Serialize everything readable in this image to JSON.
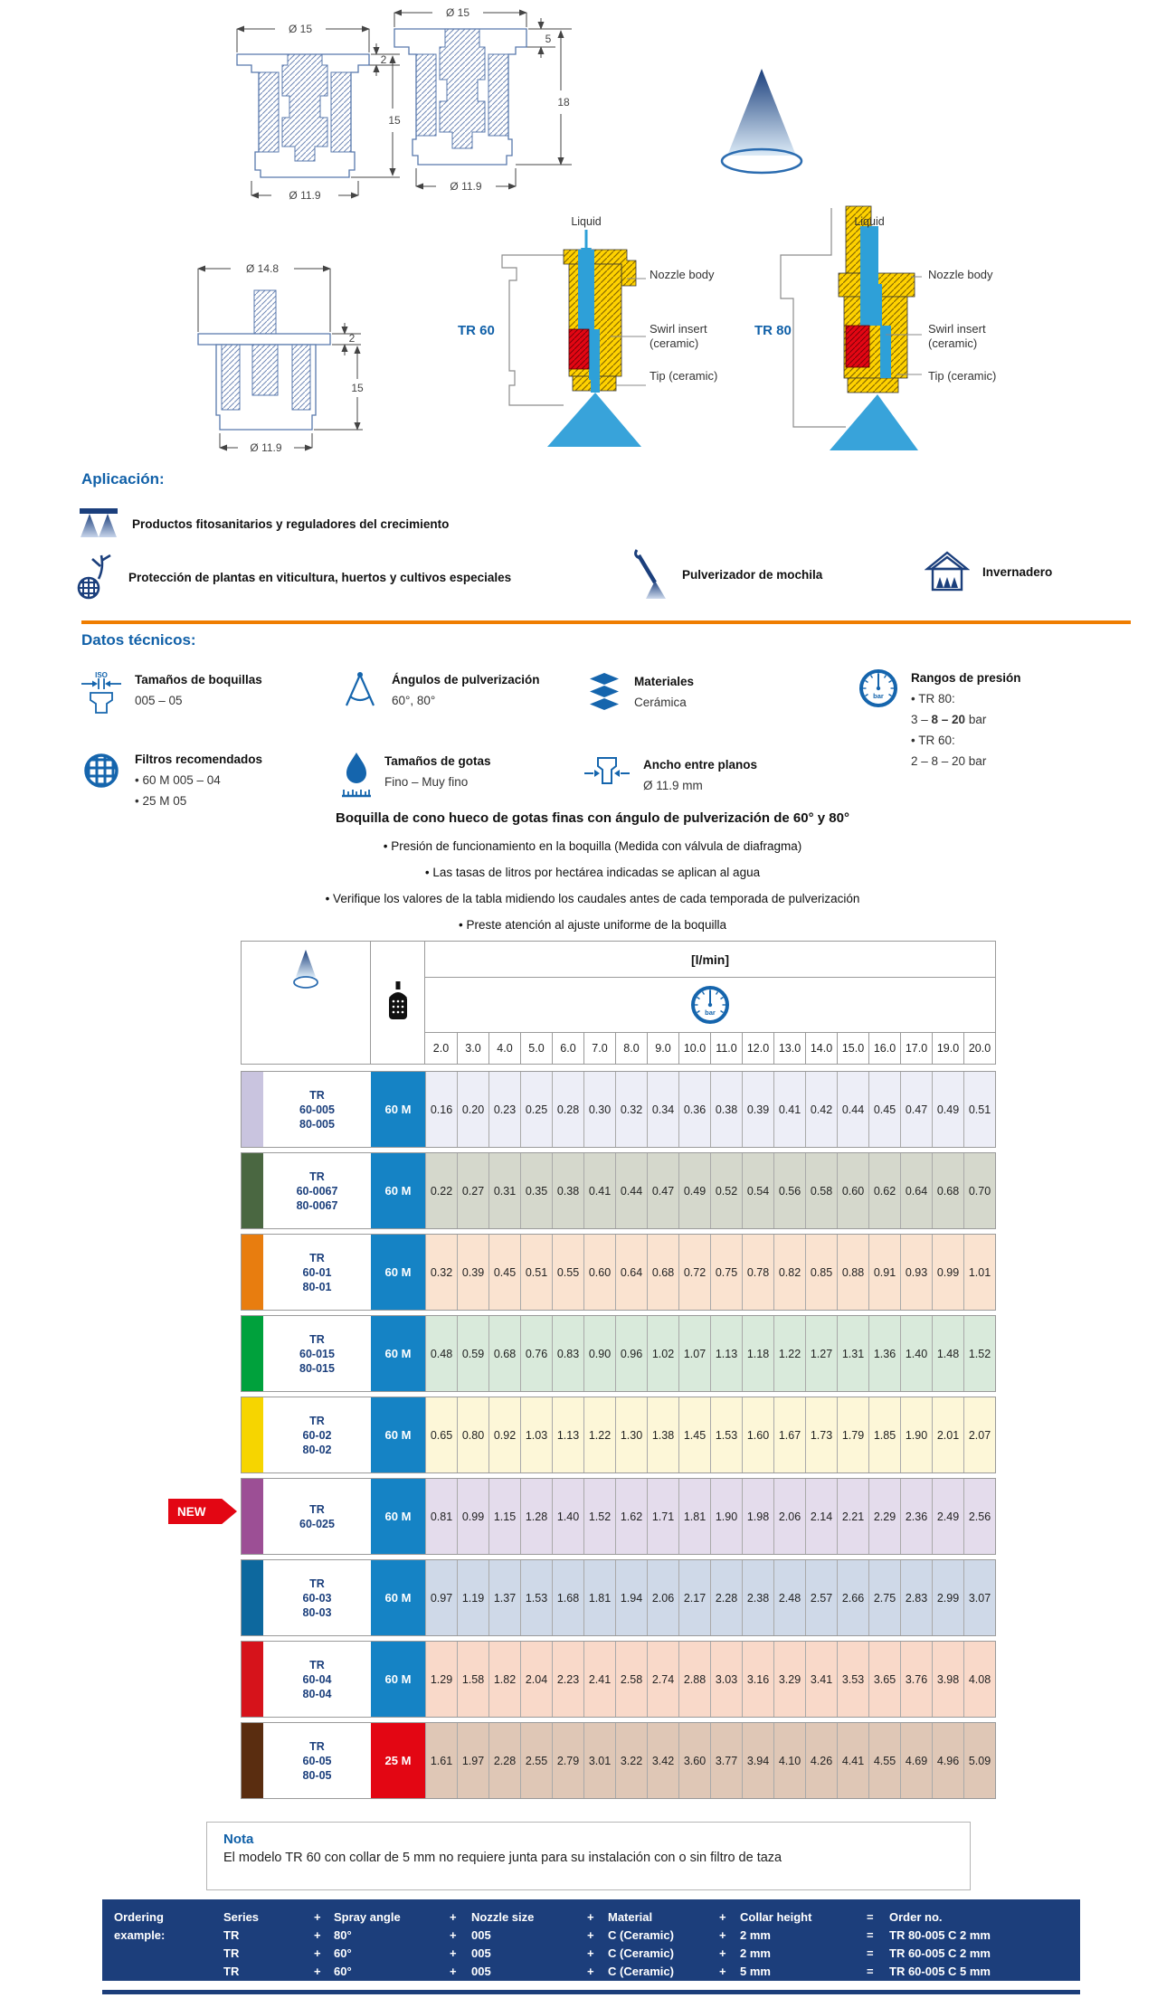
{
  "misc": {
    "bar": "bar",
    "iso": "ISO"
  },
  "drawings": {
    "top_left": {
      "dia_top": "Ø 15",
      "collar": "2",
      "height": "15",
      "dia_bottom": "Ø 11.9"
    },
    "top_mid": {
      "dia_top": "Ø 15",
      "collar": "5",
      "height": "18",
      "dia_bottom": "Ø 11.9"
    },
    "collar_detail": {
      "dia_top": "Ø 14.8",
      "collar": "2",
      "height": "15",
      "dia_bottom": "Ø 11.9"
    },
    "sections": [
      {
        "label": "TR 60",
        "liquid": "Liquid",
        "parts": [
          "Nozzle body",
          "Swirl insert",
          "(ceramic)",
          "Tip (ceramic)"
        ]
      },
      {
        "label": "TR 80",
        "liquid": "Liquid",
        "parts": [
          "Nozzle body",
          "Swirl insert",
          "(ceramic)",
          "Tip (ceramic)"
        ]
      }
    ]
  },
  "aplicacion": {
    "heading": "Aplicación:",
    "items": [
      {
        "icon": "sprinkler-icon",
        "label": "Productos fitosanitarios y reguladores del crecimiento"
      },
      {
        "icon": "viticulture-icon",
        "label": "Protección de plantas en viticultura, huertos y cultivos especiales"
      },
      {
        "icon": "knapsack-sprayer-icon",
        "label": "Pulverizador de mochila"
      },
      {
        "icon": "greenhouse-icon",
        "label": "Invernadero"
      }
    ]
  },
  "datos": {
    "heading": "Datos técnicos:",
    "items": [
      {
        "title": "Tamaños de boquillas",
        "lines": [
          "005 – 05"
        ]
      },
      {
        "title": "Ángulos de pulverización",
        "lines": [
          "60°, 80°"
        ]
      },
      {
        "title": "Materiales",
        "lines": [
          "Cerámica"
        ]
      },
      {
        "title": "Rangos de presión"
      },
      {
        "title": "Filtros recomendados",
        "lines": [
          "• 60 M 005 – 04",
          "• 25 M 05"
        ]
      },
      {
        "title": "Tamaños de gotas",
        "lines": [
          "Fino – Muy fino"
        ]
      },
      {
        "title": "Ancho entre planos",
        "lines": [
          "Ø 11.9 mm"
        ]
      }
    ],
    "presion": {
      "line1": "• TR 80:",
      "line2_pre": "3 – ",
      "line2_bold": "8 – 20",
      "line2_post": " bar",
      "line3": "• TR 60:",
      "line4": "2 – 8 – 20 bar"
    }
  },
  "intro": {
    "title": "Boquilla de cono hueco de gotas finas con ángulo de pulverización de 60° y 80°",
    "bullets": [
      "• Presión de funcionamiento en la boquilla (Medida con válvula de diafragma)",
      "• Las tasas de litros por hectárea indicadas se aplican al agua",
      "• Verifique los valores de la tabla midiendo los caudales antes de cada temporada de pulverización",
      "• Preste atención al ajuste uniforme de la boquilla"
    ]
  },
  "table": {
    "flow_unit": "[l/min]",
    "new_badge": "NEW",
    "pressures_bar": [
      "2.0",
      "3.0",
      "4.0",
      "5.0",
      "6.0",
      "7.0",
      "8.0",
      "9.0",
      "10.0",
      "11.0",
      "12.0",
      "13.0",
      "14.0",
      "15.0",
      "16.0",
      "17.0",
      "19.0",
      "20.0"
    ],
    "rows": [
      {
        "model": [
          "TR",
          "60-005",
          "80-005"
        ],
        "filter": "60 M",
        "filter_bg": "#1583c5",
        "strip": "#c9c4df",
        "bg": "#edeef7",
        "is_new": false,
        "values": [
          "0.16",
          "0.20",
          "0.23",
          "0.25",
          "0.28",
          "0.30",
          "0.32",
          "0.34",
          "0.36",
          "0.38",
          "0.39",
          "0.41",
          "0.42",
          "0.44",
          "0.45",
          "0.47",
          "0.49",
          "0.51"
        ]
      },
      {
        "model": [
          "TR",
          "60-0067",
          "80-0067"
        ],
        "filter": "60 M",
        "filter_bg": "#1583c5",
        "strip": "#4a6741",
        "bg": "#d5d8cc",
        "is_new": false,
        "values": [
          "0.22",
          "0.27",
          "0.31",
          "0.35",
          "0.38",
          "0.41",
          "0.44",
          "0.47",
          "0.49",
          "0.52",
          "0.54",
          "0.56",
          "0.58",
          "0.60",
          "0.62",
          "0.64",
          "0.68",
          "0.70"
        ]
      },
      {
        "model": [
          "TR",
          "60-01",
          "80-01"
        ],
        "filter": "60 M",
        "filter_bg": "#1583c5",
        "strip": "#e87d0f",
        "bg": "#fae3d0",
        "is_new": false,
        "values": [
          "0.32",
          "0.39",
          "0.45",
          "0.51",
          "0.55",
          "0.60",
          "0.64",
          "0.68",
          "0.72",
          "0.75",
          "0.78",
          "0.82",
          "0.85",
          "0.88",
          "0.91",
          "0.93",
          "0.99",
          "1.01"
        ]
      },
      {
        "model": [
          "TR",
          "60-015",
          "80-015"
        ],
        "filter": "60 M",
        "filter_bg": "#1583c5",
        "strip": "#00a13c",
        "bg": "#d9eadb",
        "is_new": false,
        "values": [
          "0.48",
          "0.59",
          "0.68",
          "0.76",
          "0.83",
          "0.90",
          "0.96",
          "1.02",
          "1.07",
          "1.13",
          "1.18",
          "1.22",
          "1.27",
          "1.31",
          "1.36",
          "1.40",
          "1.48",
          "1.52"
        ]
      },
      {
        "model": [
          "TR",
          "60-02",
          "80-02"
        ],
        "filter": "60 M",
        "filter_bg": "#1583c5",
        "strip": "#f6d500",
        "bg": "#fdf7d8",
        "is_new": false,
        "values": [
          "0.65",
          "0.80",
          "0.92",
          "1.03",
          "1.13",
          "1.22",
          "1.30",
          "1.38",
          "1.45",
          "1.53",
          "1.60",
          "1.67",
          "1.73",
          "1.79",
          "1.85",
          "1.90",
          "2.01",
          "2.07"
        ]
      },
      {
        "model": [
          "TR",
          "60-025"
        ],
        "filter": "60 M",
        "filter_bg": "#1583c5",
        "strip": "#9c4f95",
        "bg": "#e4dcec",
        "is_new": true,
        "values": [
          "0.81",
          "0.99",
          "1.15",
          "1.28",
          "1.40",
          "1.52",
          "1.62",
          "1.71",
          "1.81",
          "1.90",
          "1.98",
          "2.06",
          "2.14",
          "2.21",
          "2.29",
          "2.36",
          "2.49",
          "2.56"
        ]
      },
      {
        "model": [
          "TR",
          "60-03",
          "80-03"
        ],
        "filter": "60 M",
        "filter_bg": "#1583c5",
        "strip": "#0d689e",
        "bg": "#cfd9e8",
        "is_new": false,
        "values": [
          "0.97",
          "1.19",
          "1.37",
          "1.53",
          "1.68",
          "1.81",
          "1.94",
          "2.06",
          "2.17",
          "2.28",
          "2.38",
          "2.48",
          "2.57",
          "2.66",
          "2.75",
          "2.83",
          "2.99",
          "3.07"
        ]
      },
      {
        "model": [
          "TR",
          "60-04",
          "80-04"
        ],
        "filter": "60 M",
        "filter_bg": "#1583c5",
        "strip": "#d6131b",
        "bg": "#f9d9c9",
        "is_new": false,
        "values": [
          "1.29",
          "1.58",
          "1.82",
          "2.04",
          "2.23",
          "2.41",
          "2.58",
          "2.74",
          "2.88",
          "3.03",
          "3.16",
          "3.29",
          "3.41",
          "3.53",
          "3.65",
          "3.76",
          "3.98",
          "4.08"
        ]
      },
      {
        "model": [
          "TR",
          "60-05",
          "80-05"
        ],
        "filter": "25 M",
        "filter_bg": "#e30613",
        "strip": "#5a2d10",
        "bg": "#dfc7b6",
        "is_new": false,
        "values": [
          "1.61",
          "1.97",
          "2.28",
          "2.55",
          "2.79",
          "3.01",
          "3.22",
          "3.42",
          "3.60",
          "3.77",
          "3.94",
          "4.10",
          "4.26",
          "4.41",
          "4.55",
          "4.69",
          "4.96",
          "5.09"
        ]
      }
    ]
  },
  "nota": {
    "title": "Nota",
    "text": "El modelo TR 60 con collar de 5 mm no requiere junta para su instalación con o sin filtro de taza"
  },
  "ordering": {
    "label_line1": "Ordering",
    "label_line2": "example:",
    "plus": "+",
    "equals": "=",
    "columns": [
      "Series",
      "Spray angle",
      "Nozzle size",
      "Material",
      "Collar height",
      "Order no."
    ],
    "rows": [
      [
        "TR",
        "80°",
        "005",
        "C (Ceramic)",
        "2 mm",
        "TR 80-005 C 2 mm"
      ],
      [
        "TR",
        "60°",
        "005",
        "C (Ceramic)",
        "2 mm",
        "TR 60-005 C 2 mm"
      ],
      [
        "TR",
        "60°",
        "005",
        "C (Ceramic)",
        "5 mm",
        "TR 60-005 C 5 mm"
      ]
    ]
  }
}
